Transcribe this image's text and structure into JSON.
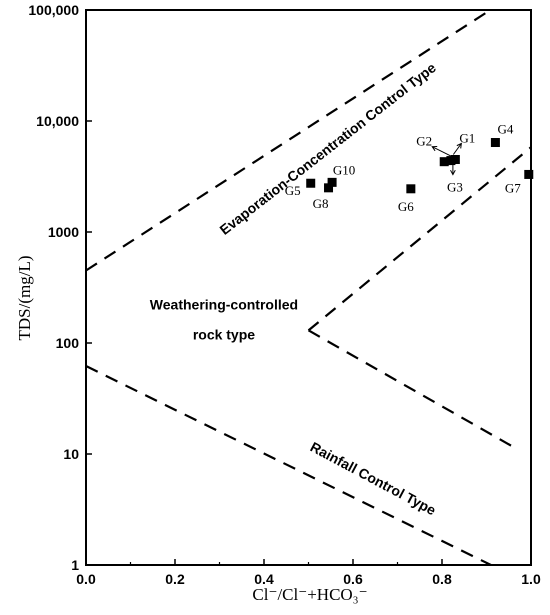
{
  "chart_data": {
    "type": "scatter",
    "xlabel": "Cl⁻/Cl⁻+HCO₃⁻",
    "ylabel": "TDS/(mg/L)",
    "xlim": [
      0.0,
      1.0
    ],
    "ylim": [
      1,
      100000
    ],
    "y_scale": "log",
    "grid": false,
    "x_ticks": [
      {
        "value": 0.0,
        "label": "0.0"
      },
      {
        "value": 0.2,
        "label": "0.2"
      },
      {
        "value": 0.4,
        "label": "0.4"
      },
      {
        "value": 0.6,
        "label": "0.6"
      },
      {
        "value": 0.8,
        "label": "0.8"
      },
      {
        "value": 1.0,
        "label": "1.0"
      }
    ],
    "y_ticks": [
      {
        "value": 1,
        "label": "1"
      },
      {
        "value": 10,
        "label": "10"
      },
      {
        "value": 100,
        "label": "100"
      },
      {
        "value": 1000,
        "label": "1000"
      },
      {
        "value": 10000,
        "label": "10,000"
      },
      {
        "value": 100000,
        "label": "100,000"
      }
    ],
    "points": [
      {
        "label": "G1",
        "x": 0.83,
        "y": 4500
      },
      {
        "label": "G2",
        "x": 0.805,
        "y": 4300
      },
      {
        "label": "G3",
        "x": 0.82,
        "y": 4400
      },
      {
        "label": "G4",
        "x": 0.92,
        "y": 6400
      },
      {
        "label": "G5",
        "x": 0.505,
        "y": 2750
      },
      {
        "label": "G6",
        "x": 0.73,
        "y": 2450
      },
      {
        "label": "G7",
        "x": 0.995,
        "y": 3300
      },
      {
        "label": "G8",
        "x": 0.545,
        "y": 2500
      },
      {
        "label": "G10",
        "x": 0.553,
        "y": 2800
      }
    ],
    "boundary_lines": [
      {
        "x": [
          0.0,
          0.9
        ],
        "y": [
          450,
          95000
        ]
      },
      {
        "x": [
          0.5,
          1.0
        ],
        "y": [
          130,
          5800
        ]
      },
      {
        "x": [
          0.5,
          0.97
        ],
        "y": [
          130,
          11
        ]
      },
      {
        "x": [
          0.0,
          0.91
        ],
        "y": [
          62,
          1
        ]
      }
    ],
    "region_labels": [
      {
        "text": "Evaporation-Concentration Control Type",
        "x": 0.55,
        "y": 5200,
        "rotate": -38
      },
      {
        "text": "Weathering-controlled",
        "x": 0.31,
        "y": 200,
        "rotate": 0
      },
      {
        "text": "rock type",
        "x": 0.31,
        "y": 108,
        "rotate": 0
      },
      {
        "text": "Rainfall Control Type",
        "x": 0.64,
        "y": 5.5,
        "rotate": 28
      }
    ]
  }
}
